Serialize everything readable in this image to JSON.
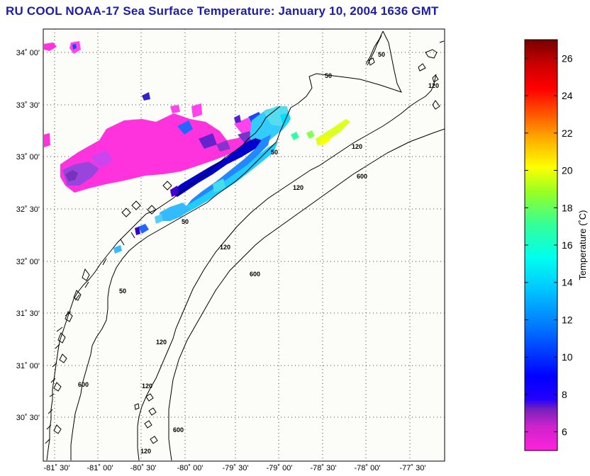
{
  "title": "RU COOL  NOAA-17  Sea Surface Temperature:  January 10, 2004 1636 GMT",
  "map": {
    "lat_labels": [
      "34˚ 00'",
      "33˚ 30'",
      "33˚ 00'",
      "32˚ 30'",
      "32˚ 00'",
      "31˚ 30'",
      "31˚ 00'",
      "30˚ 30'"
    ],
    "lon_labels": [
      "-81˚ 30'",
      "-81˚ 00'",
      "-80˚ 30'",
      "-80˚ 00'",
      "-79˚ 30'",
      "-79˚ 00'",
      "-78˚ 30'",
      "-78˚ 00'",
      "-77˚ 30'"
    ],
    "lat_values": [
      34.0,
      33.5,
      33.0,
      32.5,
      32.0,
      31.5,
      31.0,
      30.5
    ],
    "lon_values": [
      -81.5,
      -81.0,
      -80.5,
      -80.0,
      -79.5,
      -79.0,
      -78.5,
      -78.0,
      -77.5
    ],
    "contour_labels": [
      "50",
      "50",
      "50",
      "50",
      "50",
      "120",
      "120",
      "120",
      "120",
      "120",
      "120",
      "120",
      "600",
      "600",
      "600",
      "600"
    ],
    "background_color": "#fcfcf8",
    "land_color": "#ffffff"
  },
  "colorbar": {
    "label": "Temperature (˚C)",
    "ticks": [
      "26",
      "24",
      "22",
      "20",
      "18",
      "16",
      "14",
      "12",
      "10",
      "8",
      "6"
    ],
    "tick_values": [
      26,
      24,
      22,
      20,
      18,
      16,
      14,
      12,
      10,
      8,
      6
    ],
    "range": [
      5,
      27
    ],
    "colormap": [
      "#ff22dd",
      "#7722bb",
      "#0000ff",
      "#0088ff",
      "#00ffff",
      "#44ff88",
      "#aaff00",
      "#ffff00",
      "#ffaa00",
      "#ff2200",
      "#cc0000",
      "#770000"
    ]
  }
}
